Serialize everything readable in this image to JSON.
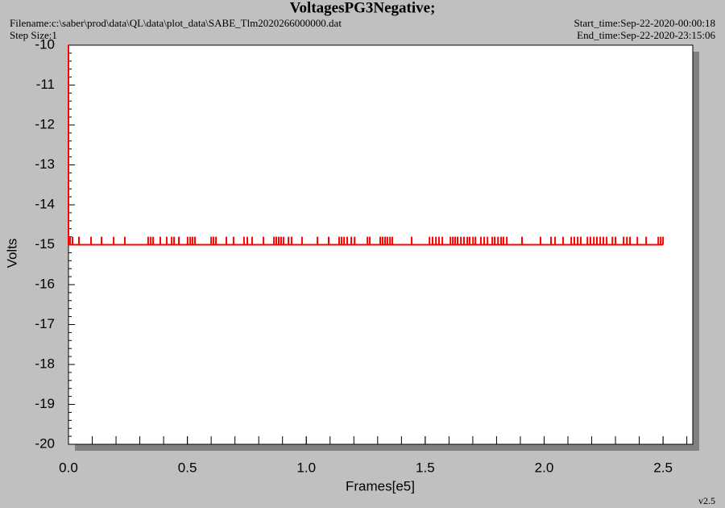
{
  "chart_data": {
    "type": "line",
    "title": "VoltagesPG3Negative;",
    "filename": "Filename:c:\\saber\\prod\\data\\QL\\data\\plot_data\\SABE_Tlm2020266000000.dat",
    "step_size": "Step Size:1",
    "start_time": "Start_time:Sep-22-2020-00:00:18",
    "end_time": "End_time:Sep-22-2020-23:15:06",
    "version": "v2.5",
    "xlabel": "Frames[e5]",
    "ylabel": "Volts",
    "xlim": [
      0,
      2.625
    ],
    "ylim": [
      -20,
      -10
    ],
    "xticks": [
      {
        "value": 0,
        "label": "0.0"
      },
      0.5,
      {
        "value": 1,
        "label": "1.0"
      },
      1.5,
      {
        "value": 2,
        "label": "2.0"
      },
      2.5
    ],
    "yticks": [
      -10,
      -11,
      -12,
      -13,
      -14,
      -15,
      -16,
      -17,
      -18,
      -19,
      -20
    ],
    "series": [
      {
        "color": "#ff0000",
        "x": [
          0,
          2.5
        ],
        "values": [
          -15,
          -15
        ]
      },
      {
        "color": "#ff0000",
        "x": [
          0,
          0
        ],
        "values": [
          -10,
          -15
        ]
      },
      {
        "color": "#ff0000",
        "mode": "impulse",
        "x": [
          0.007,
          0.017,
          0.044,
          0.095,
          0.139,
          0.19,
          0.237,
          0.335,
          0.346,
          0.356,
          0.386,
          0.413,
          0.434,
          0.444,
          0.464,
          0.501,
          0.512,
          0.522,
          0.532,
          0.6,
          0.61,
          0.62,
          0.664,
          0.694,
          0.738,
          0.752,
          0.772,
          0.82,
          0.864,
          0.874,
          0.884,
          0.894,
          0.904,
          0.925,
          0.938,
          0.982,
          1.047,
          1.094,
          1.138,
          1.148,
          1.159,
          1.172,
          1.189,
          1.203,
          1.257,
          1.267,
          1.311,
          1.321,
          1.331,
          1.341,
          1.352,
          1.362,
          1.443,
          1.518,
          1.531,
          1.545,
          1.558,
          1.572,
          1.606,
          1.616,
          1.626,
          1.636,
          1.65,
          1.663,
          1.677,
          1.687,
          1.701,
          1.711,
          1.734,
          1.748,
          1.762,
          1.782,
          1.792,
          1.806,
          1.819,
          1.829,
          1.843,
          1.907,
          1.985,
          2.029,
          2.046,
          2.08,
          2.114,
          2.127,
          2.141,
          2.154,
          2.182,
          2.195,
          2.209,
          2.222,
          2.236,
          2.249,
          2.263,
          2.287,
          2.3,
          2.334,
          2.348,
          2.361,
          2.392,
          2.429,
          2.48,
          2.49,
          2.5
        ],
        "values": [
          -14.8,
          -14.8,
          -14.8,
          -14.8,
          -14.8,
          -14.8,
          -14.8,
          -14.8,
          -14.8,
          -14.8,
          -14.8,
          -14.8,
          -14.8,
          -14.8,
          -14.8,
          -14.8,
          -14.8,
          -14.8,
          -14.8,
          -14.8,
          -14.8,
          -14.8,
          -14.8,
          -14.8,
          -14.8,
          -14.8,
          -14.8,
          -14.8,
          -14.8,
          -14.8,
          -14.8,
          -14.8,
          -14.8,
          -14.8,
          -14.8,
          -14.8,
          -14.8,
          -14.8,
          -14.8,
          -14.8,
          -14.8,
          -14.8,
          -14.8,
          -14.8,
          -14.8,
          -14.8,
          -14.8,
          -14.8,
          -14.8,
          -14.8,
          -14.8,
          -14.8,
          -14.8,
          -14.8,
          -14.8,
          -14.8,
          -14.8,
          -14.8,
          -14.8,
          -14.8,
          -14.8,
          -14.8,
          -14.8,
          -14.8,
          -14.8,
          -14.8,
          -14.8,
          -14.8,
          -14.8,
          -14.8,
          -14.8,
          -14.8,
          -14.8,
          -14.8,
          -14.8,
          -14.8,
          -14.8,
          -14.8,
          -14.8,
          -14.8,
          -14.8,
          -14.8,
          -14.8,
          -14.8,
          -14.8,
          -14.8,
          -14.8,
          -14.8,
          -14.8,
          -14.8,
          -14.8,
          -14.8,
          -14.8,
          -14.8,
          -14.8,
          -14.8,
          -14.8,
          -14.8,
          -14.8,
          -14.8,
          -14.8,
          -14.8,
          -14.8
        ]
      }
    ]
  }
}
